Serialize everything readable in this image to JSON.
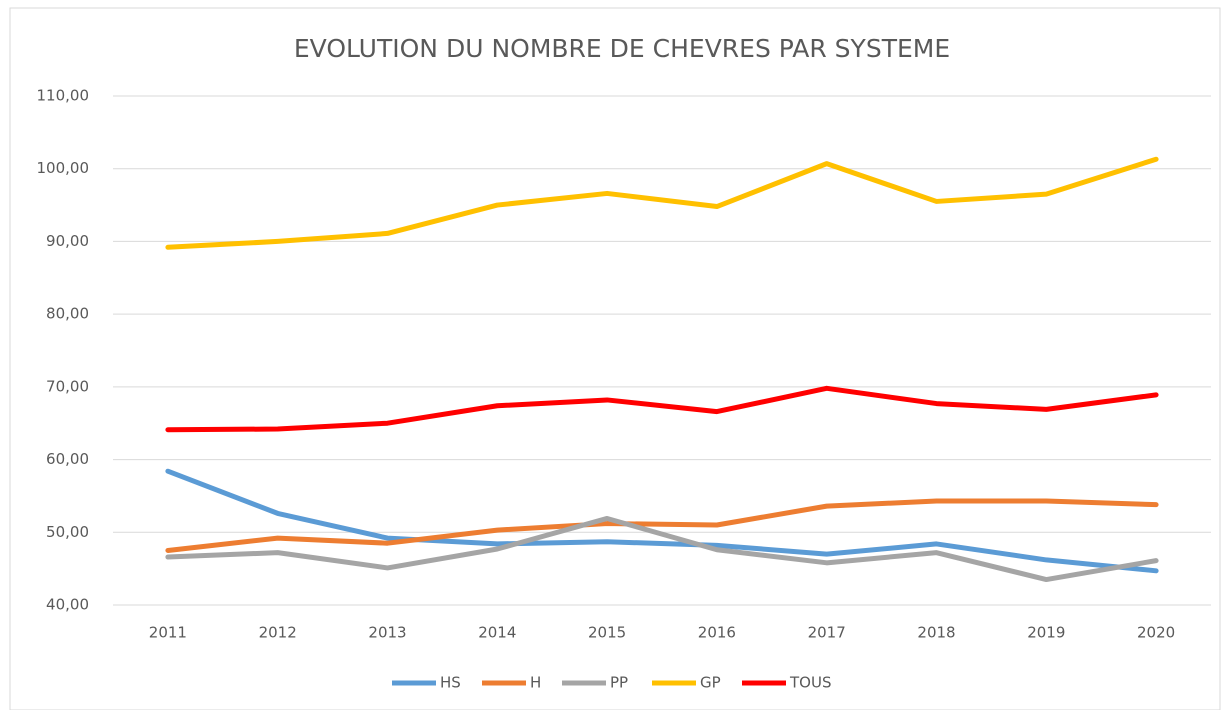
{
  "chart_data": {
    "type": "line",
    "title": "EVOLUTION DU NOMBRE DE CHEVRES PAR SYSTEME",
    "categories": [
      "2011",
      "2012",
      "2013",
      "2014",
      "2015",
      "2016",
      "2017",
      "2018",
      "2019",
      "2020"
    ],
    "series": [
      {
        "name": "HS",
        "color": "#5b9bd5",
        "values": [
          58.4,
          52.6,
          49.2,
          48.4,
          48.7,
          48.2,
          47.0,
          48.4,
          46.2,
          44.7
        ]
      },
      {
        "name": "H",
        "color": "#ed7d31",
        "values": [
          47.5,
          49.2,
          48.5,
          50.3,
          51.2,
          51.0,
          53.6,
          54.3,
          54.3,
          53.8
        ]
      },
      {
        "name": "PP",
        "color": "#a5a5a5",
        "values": [
          46.6,
          47.2,
          45.1,
          47.7,
          51.9,
          47.6,
          45.8,
          47.2,
          43.5,
          46.1
        ]
      },
      {
        "name": "GP",
        "color": "#ffc000",
        "values": [
          89.2,
          90.0,
          91.1,
          95.0,
          96.6,
          94.8,
          100.7,
          95.5,
          96.5,
          101.3
        ]
      },
      {
        "name": "TOUS",
        "color": "#ff0000",
        "values": [
          64.1,
          64.2,
          65.0,
          67.4,
          68.2,
          66.6,
          69.8,
          67.7,
          66.9,
          68.9
        ]
      }
    ],
    "ylim": [
      40,
      110
    ],
    "yticks": [
      {
        "value": 40,
        "label": "40,00"
      },
      {
        "value": 50,
        "label": "50,00"
      },
      {
        "value": 60,
        "label": "60,00"
      },
      {
        "value": 70,
        "label": "70,00"
      },
      {
        "value": 80,
        "label": "80,00"
      },
      {
        "value": 90,
        "label": "90,00"
      },
      {
        "value": 100,
        "label": "100,00"
      },
      {
        "value": 110,
        "label": "110,00"
      }
    ],
    "grid": true,
    "legend": "bottom"
  }
}
